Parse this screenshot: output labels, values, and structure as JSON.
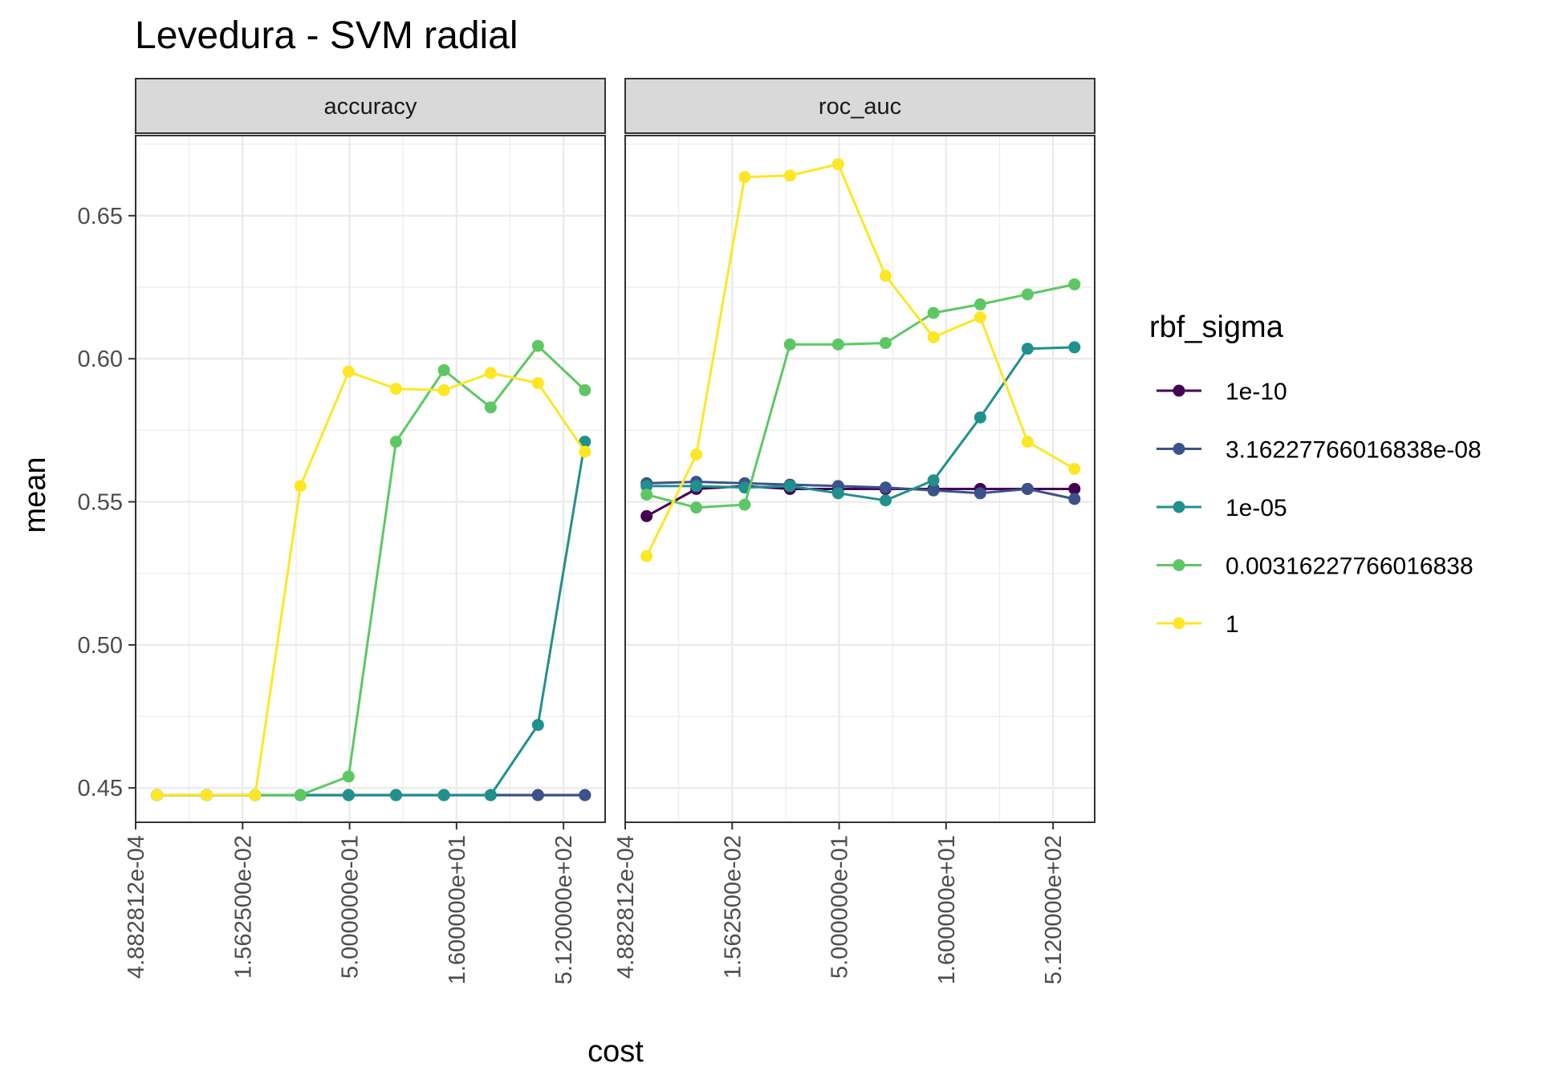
{
  "chart_data": {
    "type": "line",
    "title": "Levedura - SVM radial",
    "xlabel": "cost",
    "ylabel": "mean",
    "x_scale": "log2",
    "x": [
      0.0009765625,
      0.0048828125,
      0.0234375,
      0.1015625,
      0.484375,
      2.25,
      10.625,
      48.3125,
      223.9375,
      1024
    ],
    "x_tick_values": [
      0.0004882812,
      0.015625,
      0.5,
      16,
      512
    ],
    "x_tick_labels": [
      "4.882812e-04",
      "1.562500e-02",
      "5.000000e-01",
      "1.600000e+01",
      "5.120000e+02"
    ],
    "ylim": [
      0.438,
      0.678
    ],
    "y_ticks": [
      0.45,
      0.5,
      0.55,
      0.6,
      0.65
    ],
    "y_tick_labels": [
      "0.45",
      "0.50",
      "0.55",
      "0.60",
      "0.65"
    ],
    "grid": true,
    "legend": {
      "title": "rbf_sigma",
      "position": "right"
    },
    "panels": [
      {
        "label": "accuracy",
        "series": [
          {
            "name": "1e-10",
            "color": "#440154",
            "values": [
              0.4475,
              0.4475,
              0.4475,
              0.4475,
              0.4475,
              0.4475,
              0.4475,
              0.4475,
              0.4475,
              0.4475
            ]
          },
          {
            "name": "3.16227766016838e-08",
            "color": "#3B528B",
            "values": [
              0.4475,
              0.4475,
              0.4475,
              0.4475,
              0.4475,
              0.4475,
              0.4475,
              0.4475,
              0.4475,
              0.4475
            ]
          },
          {
            "name": "1e-05",
            "color": "#21908C",
            "values": [
              0.4475,
              0.4475,
              0.4475,
              0.4475,
              0.4475,
              0.4475,
              0.4475,
              0.4475,
              0.472,
              0.571
            ]
          },
          {
            "name": "0.00316227766016838",
            "color": "#5DC863",
            "values": [
              0.4475,
              0.4475,
              0.4475,
              0.4475,
              0.454,
              0.571,
              0.596,
              0.583,
              0.6045,
              0.589
            ]
          },
          {
            "name": "1",
            "color": "#FDE725",
            "values": [
              0.4475,
              0.4475,
              0.4475,
              0.5555,
              0.5955,
              0.5895,
              0.589,
              0.595,
              0.5915,
              0.5675
            ]
          }
        ]
      },
      {
        "label": "roc_auc",
        "series": [
          {
            "name": "1e-10",
            "color": "#440154",
            "values": [
              0.545,
              0.5545,
              0.5555,
              0.5545,
              0.5545,
              0.5545,
              0.5545,
              0.5545,
              0.5545,
              0.5545
            ]
          },
          {
            "name": "3.16227766016838e-08",
            "color": "#3B528B",
            "values": [
              0.5565,
              0.557,
              0.5565,
              0.556,
              0.5555,
              0.555,
              0.554,
              0.553,
              0.5545,
              0.551
            ]
          },
          {
            "name": "1e-05",
            "color": "#21908C",
            "values": [
              0.5555,
              0.5555,
              0.555,
              0.5555,
              0.553,
              0.5505,
              0.5575,
              0.5795,
              0.6035,
              0.604
            ]
          },
          {
            "name": "0.00316227766016838",
            "color": "#5DC863",
            "values": [
              0.5525,
              0.548,
              0.549,
              0.605,
              0.605,
              0.6055,
              0.616,
              0.619,
              0.6225,
              0.626
            ]
          },
          {
            "name": "1",
            "color": "#FDE725",
            "values": [
              0.531,
              0.5665,
              0.6635,
              0.664,
              0.668,
              0.629,
              0.6075,
              0.6145,
              0.571,
              0.5615
            ]
          }
        ]
      }
    ]
  }
}
